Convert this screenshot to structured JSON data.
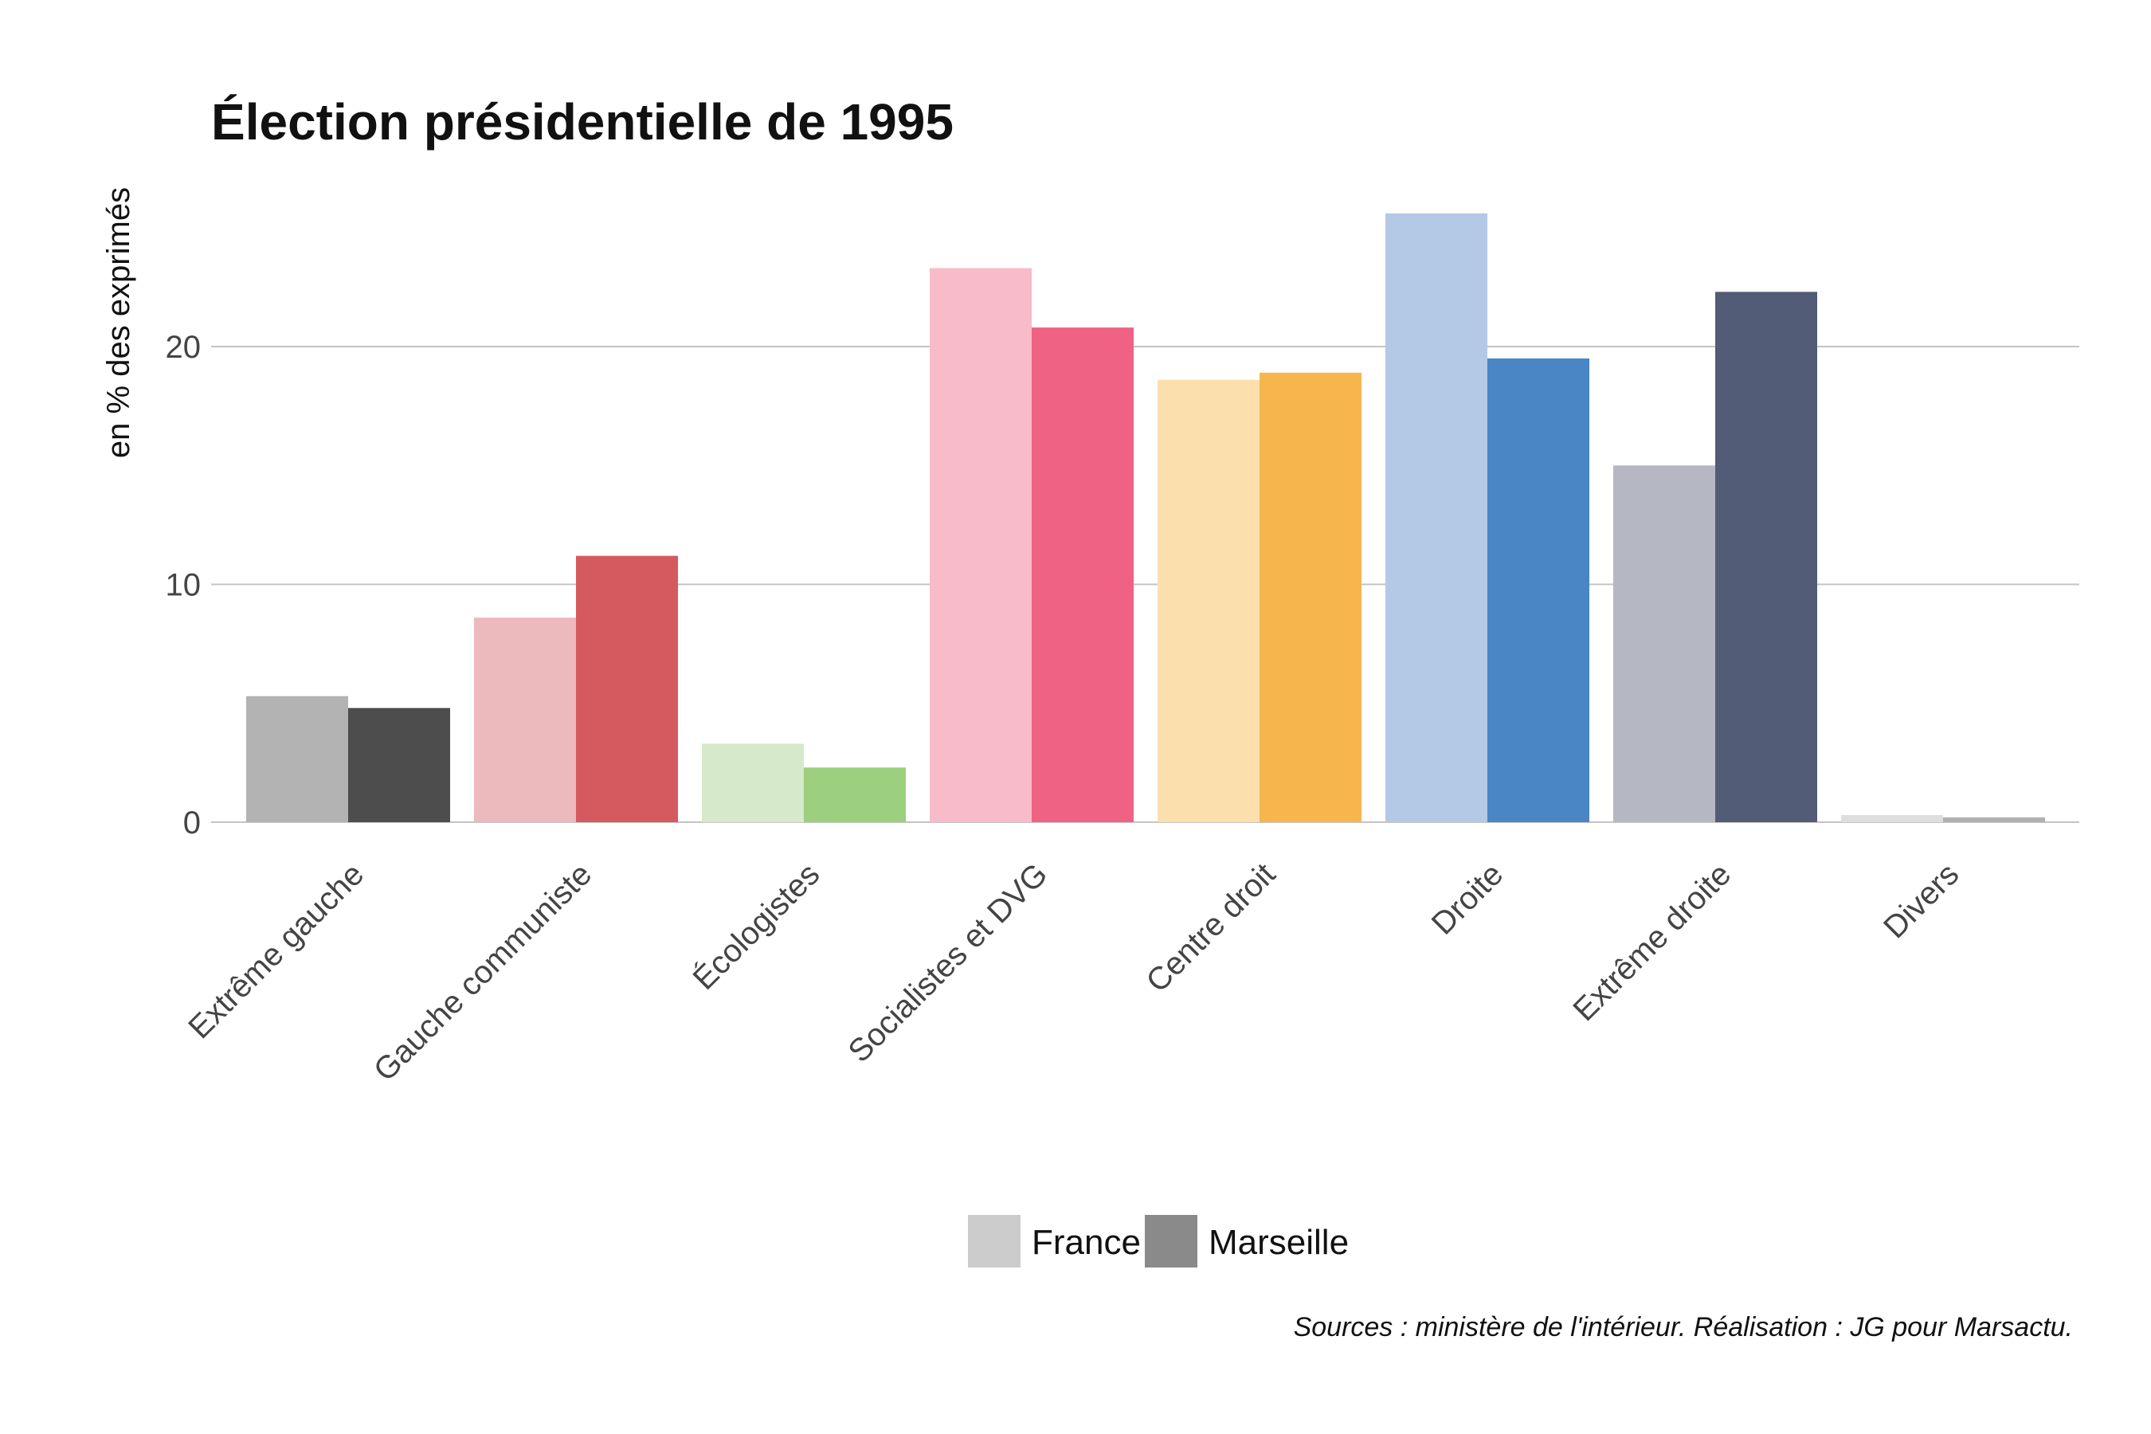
{
  "chart_data": {
    "type": "bar",
    "title": "Élection présidentielle de 1995",
    "xlabel": "",
    "ylabel": "en % des exprimés",
    "ylim": [
      0,
      28
    ],
    "yticks": [
      0,
      10,
      20
    ],
    "grid": true,
    "legend_position": "bottom",
    "categories": [
      "Extrême gauche",
      "Gauche communiste",
      "Écologistes",
      "Socialistes et DVG",
      "Centre droit",
      "Droite",
      "Extrême droite",
      "Divers"
    ],
    "series": [
      {
        "name": "France",
        "values": [
          5.3,
          8.6,
          3.3,
          23.3,
          18.6,
          25.6,
          15.0,
          0.3
        ]
      },
      {
        "name": "Marseille",
        "values": [
          4.8,
          11.2,
          2.3,
          20.8,
          18.9,
          19.5,
          22.3,
          0.2
        ]
      }
    ],
    "colors": {
      "France": [
        "#b3b3b3",
        "#ecb9bd",
        "#d6e9cb",
        "#f7bbca",
        "#fbe0ae",
        "#b3c9e6",
        "#b5b8c2",
        "#dedede"
      ],
      "Marseille": [
        "#4d4d4d",
        "#d45a60",
        "#9ccf7e",
        "#f06283",
        "#f6b64d",
        "#4a85c5",
        "#535c76",
        "#b0b0b0"
      ]
    },
    "legend": [
      {
        "name": "France",
        "color": "#cccccc"
      },
      {
        "name": "Marseille",
        "color": "#8a8a8a"
      }
    ],
    "caption": "Sources : ministère de l'intérieur. Réalisation : JG pour Marsactu."
  }
}
